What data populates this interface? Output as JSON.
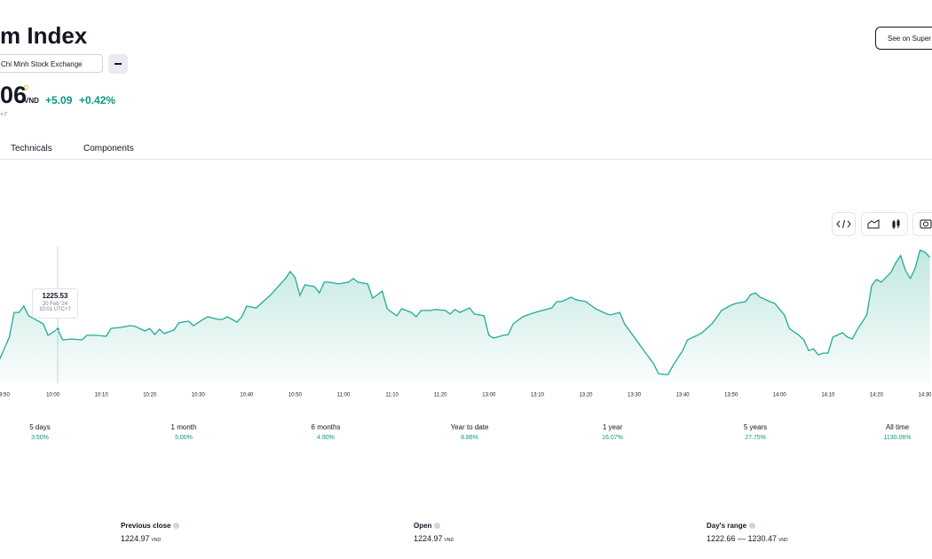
{
  "header": {
    "title": "m Index",
    "exchange": "Chi Minh Stock Exchange",
    "price": "06",
    "price_flag": "D",
    "currency": "VND",
    "change": "+5.09",
    "change_percent": "+0.42%",
    "timezone": "+7",
    "button": "See on Super"
  },
  "tabs": [
    "Technicals",
    "Components"
  ],
  "chart_data": {
    "type": "line",
    "color": "#22ab94",
    "x": [
      "9:49",
      "9:51",
      "9:52",
      "9:53",
      "9:54",
      "9:55",
      "9:57",
      "9:58",
      "9:59",
      "10:01",
      "10:02",
      "10:04",
      "10:06",
      "10:07",
      "10:09",
      "10:11",
      "10:12",
      "10:14",
      "10:16",
      "10:17",
      "10:19",
      "10:20",
      "10:21",
      "10:22",
      "10:23",
      "10:25",
      "10:26",
      "10:28",
      "10:29",
      "10:31",
      "10:32",
      "10:34",
      "10:35",
      "10:36",
      "10:38",
      "10:39",
      "10:40",
      "10:42",
      "10:43",
      "10:45",
      "10:47",
      "10:48",
      "10:49",
      "10:50",
      "10:51",
      "10:52",
      "10:54",
      "10:55",
      "10:56",
      "10:57",
      "10:59",
      "11:01",
      "11:02",
      "11:03",
      "11:05",
      "11:06",
      "11:07",
      "11:08",
      "11:09",
      "11:10",
      "11:11",
      "11:12",
      "11:14",
      "11:15",
      "11:16",
      "11:18",
      "11:19",
      "11:21",
      "11:22",
      "11:23",
      "11:24",
      "11:26",
      "11:27",
      "11:29",
      "13:00",
      "13:01",
      "13:03",
      "13:04",
      "13:05",
      "13:07",
      "13:09",
      "13:11",
      "13:13",
      "13:14",
      "13:15",
      "13:17",
      "13:18",
      "13:20",
      "13:22",
      "13:24",
      "13:25",
      "13:27",
      "13:28",
      "13:30",
      "13:32",
      "13:34",
      "13:35",
      "13:36",
      "13:37",
      "13:38",
      "13:40",
      "13:41",
      "13:43",
      "13:44",
      "13:46",
      "13:47",
      "13:48",
      "13:50",
      "13:51",
      "13:53",
      "13:54",
      "13:55",
      "13:56",
      "13:58",
      "13:59",
      "14:01",
      "14:02",
      "14:04",
      "14:05",
      "14:06",
      "14:07",
      "14:08",
      "14:09",
      "14:10",
      "14:11",
      "14:13",
      "14:14",
      "14:15",
      "14:16",
      "14:18",
      "14:19",
      "14:20",
      "14:21",
      "14:23",
      "14:24",
      "14:25",
      "14:26",
      "14:27",
      "14:28",
      "14:29",
      "14:30",
      "14:31"
    ],
    "values": [
      1223.65,
      1225.03,
      1226.56,
      1226.56,
      1226.95,
      1226.35,
      1226.02,
      1225.85,
      1225.14,
      1225.53,
      1224.86,
      1224.91,
      1224.86,
      1225.14,
      1225.14,
      1225.08,
      1225.57,
      1225.63,
      1225.74,
      1225.69,
      1225.41,
      1225.57,
      1225.19,
      1225.52,
      1225.25,
      1225.47,
      1225.91,
      1226.02,
      1225.74,
      1226.13,
      1226.29,
      1226.13,
      1226.13,
      1226.29,
      1225.96,
      1226.29,
      1226.95,
      1226.84,
      1227.12,
      1227.66,
      1228.33,
      1228.66,
      1229.09,
      1228.71,
      1227.61,
      1228.27,
      1228.16,
      1227.77,
      1228.43,
      1228.43,
      1228.33,
      1228.43,
      1228.66,
      1228.43,
      1228.33,
      1227.44,
      1227.66,
      1227.88,
      1226.79,
      1226.56,
      1226.35,
      1226.79,
      1226.56,
      1226.29,
      1226.68,
      1226.68,
      1226.74,
      1226.68,
      1226.46,
      1226.74,
      1226.56,
      1226.84,
      1226.46,
      1226.35,
      1225.14,
      1224.97,
      1225.14,
      1225.19,
      1225.85,
      1226.29,
      1226.51,
      1226.68,
      1226.84,
      1227.23,
      1227.23,
      1227.5,
      1227.34,
      1227.23,
      1226.79,
      1226.51,
      1226.4,
      1226.56,
      1225.85,
      1225.03,
      1224.2,
      1223.38,
      1222.77,
      1222.72,
      1222.72,
      1223.27,
      1224.2,
      1224.86,
      1225.14,
      1225.3,
      1225.85,
      1226.24,
      1226.68,
      1227.01,
      1227.12,
      1227.23,
      1227.66,
      1227.77,
      1227.5,
      1227.23,
      1227.12,
      1226.4,
      1225.57,
      1225.14,
      1224.86,
      1224.2,
      1224.31,
      1223.93,
      1224.04,
      1224.04,
      1225.03,
      1225.3,
      1225.03,
      1224.91,
      1225.47,
      1226.4,
      1228.22,
      1228.6,
      1228.43,
      1229.04,
      1229.64,
      1230.08,
      1229.15,
      1228.66,
      1229.31,
      1230.41,
      1230.3,
      1229.97
    ],
    "xticks": [
      "9:50",
      "10:00",
      "10:10",
      "10:20",
      "10:30",
      "10:40",
      "10:50",
      "11:00",
      "11:10",
      "11:20",
      "13:00",
      "13:10",
      "13:20",
      "13:30",
      "13:40",
      "13:50",
      "14:00",
      "14:10",
      "14:20",
      "14:30"
    ],
    "tooltip": {
      "index": 9,
      "date": "20 Feb '24",
      "time": "10:01 UTC+7"
    }
  },
  "performance": [
    {
      "period": "5 days",
      "change": "3.50%"
    },
    {
      "period": "1 month",
      "change": "5.00%"
    },
    {
      "period": "6 months",
      "change": "4.90%"
    },
    {
      "period": "Year to date",
      "change": "8.86%"
    },
    {
      "period": "1 year",
      "change": "16.07%"
    },
    {
      "period": "5 years",
      "change": "27.75%"
    },
    {
      "period": "All time",
      "change": "1130.06%"
    }
  ],
  "stats": [
    {
      "label": "Previous close",
      "value": 1224.97,
      "unit": "VND"
    },
    {
      "label": "Open",
      "value": 1224.97,
      "unit": "VND"
    },
    {
      "label": "Day's range",
      "value": "1222.66 — 1230.47",
      "unit": "VND"
    }
  ]
}
